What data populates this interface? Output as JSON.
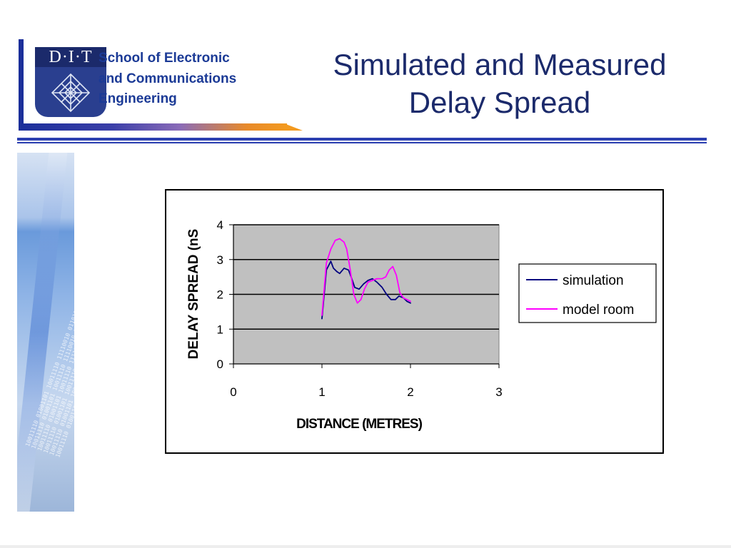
{
  "header": {
    "logo_letters": "D·I·T",
    "school_line_1": "School of Electronic",
    "school_line_2": "and Communications",
    "school_line_3": "Engineering"
  },
  "title": {
    "line_1": "Simulated and Measured",
    "line_2": "Delay Spread"
  },
  "colors": {
    "title": "#1b2a6b",
    "brand_blue": "#1b3a96",
    "rule": "#2b3fb0",
    "accent_orange": "#f39a1f",
    "plot_background": "#c0c0c0"
  },
  "side_image": {
    "binary_text": "10011110 01001101 10011110 11110010 01101001"
  },
  "chart_data": {
    "type": "line",
    "xlabel": "DISTANCE (METRES)",
    "ylabel": "DELAY SPREAD (nS",
    "xlim": [
      0,
      3
    ],
    "ylim": [
      0,
      4
    ],
    "x_ticks": [
      0,
      1,
      2,
      3
    ],
    "y_ticks": [
      0,
      1,
      2,
      3,
      4
    ],
    "grid": "horizontal major gridlines",
    "legend_position": "right",
    "series": [
      {
        "name": "simulation",
        "color": "#000080",
        "x": [
          1.0,
          1.05,
          1.1,
          1.13,
          1.17,
          1.2,
          1.25,
          1.3,
          1.33,
          1.37,
          1.42,
          1.47,
          1.52,
          1.57,
          1.62,
          1.68,
          1.73,
          1.78,
          1.83,
          1.87,
          1.92,
          1.96,
          2.0
        ],
        "y": [
          1.3,
          2.7,
          2.95,
          2.75,
          2.65,
          2.6,
          2.75,
          2.7,
          2.5,
          2.2,
          2.15,
          2.3,
          2.4,
          2.45,
          2.35,
          2.2,
          2.0,
          1.85,
          1.85,
          1.95,
          1.9,
          1.8,
          1.75
        ]
      },
      {
        "name": "model room",
        "color": "#ff00ff",
        "x": [
          1.0,
          1.05,
          1.1,
          1.15,
          1.2,
          1.25,
          1.28,
          1.32,
          1.36,
          1.4,
          1.44,
          1.48,
          1.52,
          1.57,
          1.62,
          1.68,
          1.72,
          1.76,
          1.8,
          1.84,
          1.88,
          1.92,
          1.96,
          2.0
        ],
        "y": [
          1.4,
          2.9,
          3.3,
          3.55,
          3.6,
          3.5,
          3.3,
          2.7,
          2.0,
          1.75,
          1.85,
          2.15,
          2.35,
          2.4,
          2.45,
          2.45,
          2.5,
          2.7,
          2.8,
          2.55,
          2.05,
          1.9,
          1.85,
          1.8
        ]
      }
    ]
  }
}
